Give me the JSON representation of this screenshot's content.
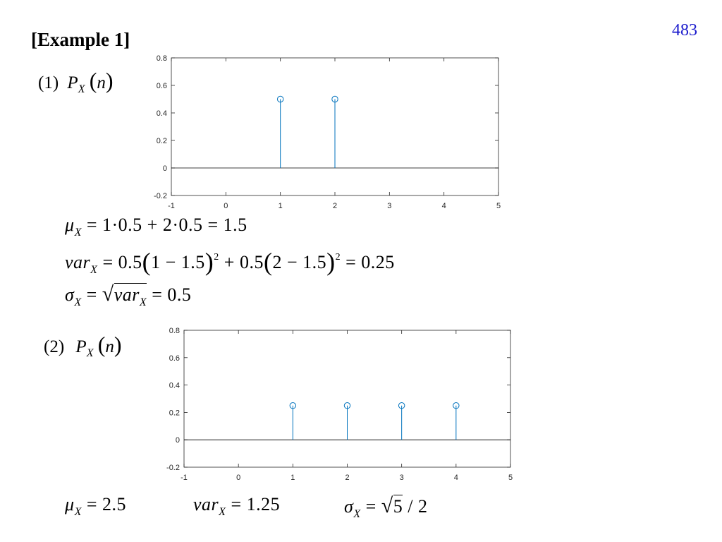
{
  "page_number": "483",
  "heading": "[Example 1]",
  "part1": {
    "number": "(1)",
    "P": "P",
    "X": "X",
    "n": "n",
    "mu": "μ",
    "mu_expr": "= 1·0.5 + 2·0.5 = 1.5",
    "var": "var",
    "var_expr_a": "= 0.5",
    "var_expr_b": "1 − 1.5",
    "var_expr_c": "+ 0.5",
    "var_expr_d": "2 − 1.5",
    "var_expr_e": "= 0.25",
    "sq": "2",
    "sigma": "σ",
    "sigma_expr_eq": "=",
    "sigma_expr_val": "= 0.5"
  },
  "part2": {
    "number": "(2)",
    "P": "P",
    "X": "X",
    "n": "n",
    "mu": "μ",
    "mu_val": "= 2.5",
    "var": "var",
    "var_val": "= 1.25",
    "sigma": "σ",
    "sigma_eq": "=",
    "sigma_root": "5",
    "sigma_rest": "/ 2"
  },
  "chart_data": [
    {
      "type": "stem",
      "x": [
        1,
        2
      ],
      "y": [
        0.5,
        0.5
      ],
      "xlim": [
        -1,
        5
      ],
      "ylim": [
        -0.2,
        0.8
      ],
      "xticks": [
        "-1",
        "0",
        "1",
        "2",
        "3",
        "4",
        "5"
      ],
      "yticks": [
        "-0.2",
        "0",
        "0.2",
        "0.4",
        "0.6",
        "0.8"
      ],
      "color": "#0072bd"
    },
    {
      "type": "stem",
      "x": [
        1,
        2,
        3,
        4
      ],
      "y": [
        0.25,
        0.25,
        0.25,
        0.25
      ],
      "xlim": [
        -1,
        5
      ],
      "ylim": [
        -0.2,
        0.8
      ],
      "xticks": [
        "-1",
        "0",
        "1",
        "2",
        "3",
        "4",
        "5"
      ],
      "yticks": [
        "-0.2",
        "0",
        "0.2",
        "0.4",
        "0.6",
        "0.8"
      ],
      "color": "#0072bd"
    }
  ]
}
